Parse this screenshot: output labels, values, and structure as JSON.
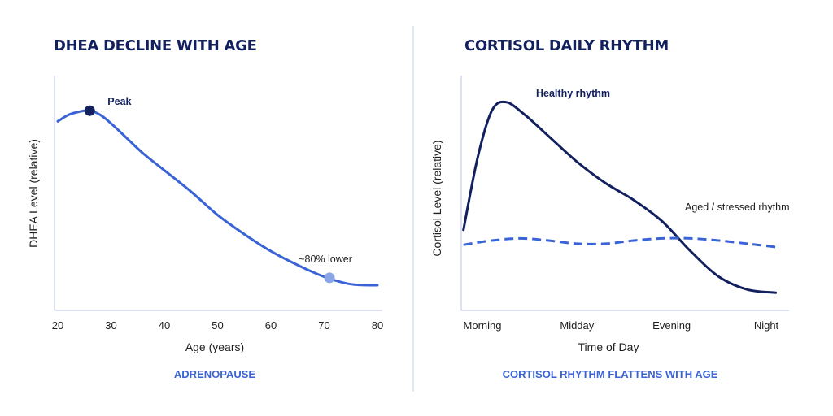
{
  "chart_data": [
    {
      "type": "line",
      "title": "DHEA DECLINE WITH AGE",
      "caption": "ADRENOPAUSE",
      "xlabel": "Age (years)",
      "ylabel": "DHEA Level (relative)",
      "xlim": [
        20,
        80
      ],
      "ylim": [
        0,
        100
      ],
      "x_ticks": [
        "20",
        "30",
        "40",
        "50",
        "60",
        "70",
        "80"
      ],
      "grid": false,
      "series": [
        {
          "color": "#3a63d6",
          "x": [
            20,
            22,
            24,
            26,
            28,
            30,
            33,
            36,
            40,
            45,
            50,
            55,
            60,
            65,
            70,
            75,
            80
          ],
          "y": [
            85,
            88,
            89.5,
            90,
            88,
            84,
            77,
            70,
            62,
            52,
            41,
            32,
            24,
            17.5,
            12,
            8.5,
            8
          ]
        }
      ],
      "annotations": [
        {
          "text": "Peak",
          "x": 26,
          "y": 90,
          "marker_color": "#13205e"
        },
        {
          "text": "~80% lower",
          "x": 71,
          "y": 11.5,
          "marker_color": "#8aa6e6"
        }
      ]
    },
    {
      "type": "line",
      "title": "CORTISOL DAILY RHYTHM",
      "caption": "CORTISOL RHYTHM FLATTENS WITH AGE",
      "xlabel": "Time of Day",
      "ylabel": "Cortisol Level (relative)",
      "categories": [
        "Morning",
        "Midday",
        "Evening",
        "Night"
      ],
      "xlim": [
        0,
        3
      ],
      "ylim": [
        0,
        100
      ],
      "grid": false,
      "series": [
        {
          "name": "Healthy rhythm",
          "color": "#13205e",
          "style": "solid",
          "x": [
            -0.2,
            -0.05,
            0.1,
            0.25,
            0.45,
            0.7,
            1.0,
            1.3,
            1.6,
            1.9,
            2.2,
            2.5,
            2.8,
            3.1
          ],
          "y": [
            34,
            68,
            90,
            94,
            88,
            78,
            66,
            56,
            48,
            38,
            24,
            12,
            6,
            4.5
          ]
        },
        {
          "name": "Aged / stressed rhythm",
          "color": "#3a63d6",
          "style": "dashed",
          "x": [
            -0.2,
            0.1,
            0.4,
            0.7,
            1.0,
            1.3,
            1.6,
            1.9,
            2.2,
            2.5,
            2.8,
            3.1
          ],
          "y": [
            27,
            29,
            30,
            29,
            27.5,
            27.5,
            29,
            30,
            30,
            29,
            27.5,
            26
          ]
        }
      ]
    }
  ]
}
